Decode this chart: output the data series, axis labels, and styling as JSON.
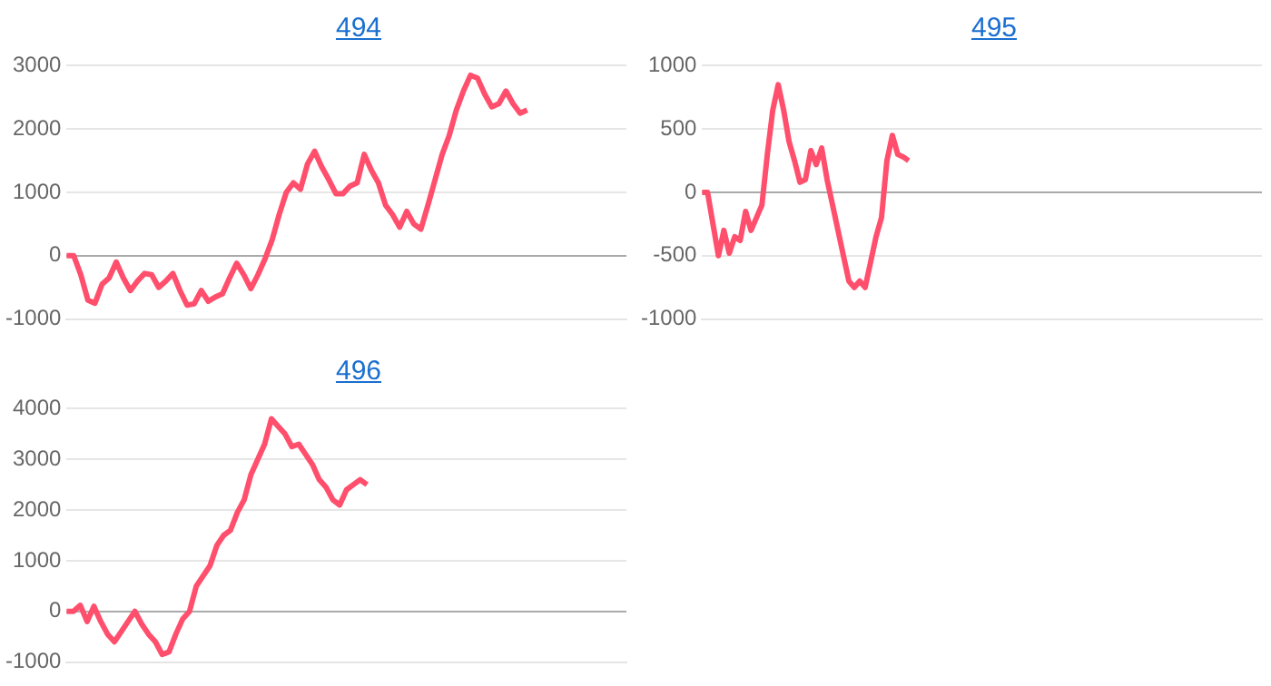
{
  "chart_data": [
    {
      "type": "line",
      "title": "494",
      "color": "#ff4f6d",
      "grid": "y",
      "legend": false,
      "marker": "none",
      "tick_labels": "y",
      "ylim": [
        -1000,
        3000
      ],
      "yticks": [
        -1000,
        0,
        1000,
        2000,
        3000
      ],
      "categories": [
        null,
        null,
        null,
        null,
        null,
        null,
        null,
        null,
        null,
        null,
        null,
        null,
        null,
        null,
        null,
        null,
        null,
        null,
        null,
        null,
        null,
        null,
        null,
        null,
        null,
        null,
        null,
        null,
        null,
        null,
        null,
        null,
        null,
        null,
        null,
        null,
        null,
        null,
        null,
        null,
        null,
        null,
        null,
        null,
        null,
        null,
        null,
        null,
        null,
        null,
        null,
        null,
        null,
        null,
        null,
        null,
        null,
        null,
        null,
        null,
        null,
        null,
        null,
        null,
        null,
        null,
        null,
        null,
        null,
        null,
        null,
        null,
        null,
        null,
        null,
        null,
        null,
        null,
        null,
        null
      ],
      "values": [
        0,
        0,
        -300,
        -700,
        -750,
        -450,
        -350,
        -100,
        -350,
        -550,
        -400,
        -280,
        -300,
        -500,
        -400,
        -280,
        -550,
        -780,
        -760,
        -550,
        -720,
        -650,
        -600,
        -350,
        -120,
        -300,
        -520,
        -300,
        -50,
        250,
        650,
        1000,
        1150,
        1050,
        1450,
        1650,
        1400,
        1200,
        980,
        980,
        1100,
        1150,
        1600,
        1350,
        1150,
        800,
        650,
        450,
        700,
        500,
        420,
        800,
        1200,
        1600,
        1900,
        2300,
        2600,
        2850,
        2800,
        2550,
        2350,
        2400,
        2600,
        2400,
        2250,
        2300,
        null,
        null,
        null,
        null,
        null,
        null,
        null,
        null,
        null,
        null,
        null,
        null,
        null,
        null
      ]
    },
    {
      "type": "line",
      "title": "495",
      "color": "#ff4f6d",
      "grid": "y",
      "legend": false,
      "marker": "none",
      "tick_labels": "y",
      "ylim": [
        -1000,
        1000
      ],
      "yticks": [
        -1000,
        -500,
        0,
        500,
        1000
      ],
      "categories": [
        null,
        null,
        null,
        null,
        null,
        null,
        null,
        null,
        null,
        null,
        null,
        null,
        null,
        null,
        null,
        null,
        null,
        null,
        null,
        null,
        null,
        null,
        null,
        null,
        null,
        null,
        null,
        null,
        null,
        null,
        null,
        null,
        null,
        null,
        null,
        null,
        null,
        null,
        null,
        null,
        null,
        null,
        null,
        null,
        null,
        null,
        null,
        null,
        null,
        null,
        null,
        null,
        null,
        null,
        null,
        null,
        null,
        null,
        null,
        null,
        null,
        null,
        null,
        null,
        null,
        null,
        null,
        null,
        null,
        null,
        null,
        null,
        null,
        null,
        null,
        null,
        null,
        null,
        null,
        null,
        null,
        null,
        null,
        null,
        null,
        null,
        null,
        null,
        null,
        null,
        null,
        null,
        null,
        null,
        null,
        null,
        null,
        null,
        null,
        null,
        null,
        null,
        null,
        null
      ],
      "values": [
        0,
        0,
        -250,
        -500,
        -300,
        -480,
        -350,
        -380,
        -150,
        -300,
        -200,
        -100,
        300,
        650,
        850,
        650,
        400,
        250,
        80,
        100,
        330,
        220,
        350,
        100,
        -100,
        -300,
        -500,
        -700,
        -750,
        -700,
        -750,
        -550,
        -350,
        -200,
        250,
        450,
        300,
        280,
        250,
        null,
        null,
        null,
        null,
        null,
        null,
        null,
        null,
        null,
        null,
        null,
        null,
        null,
        null,
        null,
        null,
        null,
        null,
        null,
        null,
        null,
        null,
        null,
        null,
        null,
        null,
        null,
        null,
        null,
        null,
        null,
        null,
        null,
        null,
        null,
        null,
        null,
        null,
        null,
        null,
        null,
        null,
        null,
        null,
        null,
        null,
        null,
        null,
        null,
        null,
        null,
        null,
        null,
        null,
        null,
        null,
        null,
        null,
        null,
        null,
        null,
        null,
        null,
        null,
        null
      ]
    },
    {
      "type": "line",
      "title": "496",
      "color": "#ff4f6d",
      "grid": "y",
      "legend": false,
      "marker": "none",
      "tick_labels": "y",
      "ylim": [
        -1000,
        4000
      ],
      "yticks": [
        -1000,
        0,
        1000,
        2000,
        3000,
        4000
      ],
      "categories": [
        null,
        null,
        null,
        null,
        null,
        null,
        null,
        null,
        null,
        null,
        null,
        null,
        null,
        null,
        null,
        null,
        null,
        null,
        null,
        null,
        null,
        null,
        null,
        null,
        null,
        null,
        null,
        null,
        null,
        null,
        null,
        null,
        null,
        null,
        null,
        null,
        null,
        null,
        null,
        null,
        null,
        null,
        null,
        null,
        null,
        null,
        null,
        null,
        null,
        null,
        null,
        null,
        null,
        null,
        null,
        null,
        null,
        null,
        null,
        null,
        null,
        null,
        null,
        null,
        null,
        null,
        null,
        null,
        null,
        null,
        null,
        null,
        null,
        null,
        null,
        null,
        null,
        null,
        null,
        null,
        null,
        null,
        null
      ],
      "values": [
        0,
        0,
        120,
        -200,
        100,
        -200,
        -450,
        -600,
        -400,
        -200,
        0,
        -250,
        -450,
        -600,
        -850,
        -800,
        -450,
        -150,
        0,
        500,
        700,
        900,
        1300,
        1500,
        1600,
        1950,
        2200,
        2700,
        3000,
        3300,
        3800,
        3650,
        3500,
        3250,
        3300,
        3100,
        2900,
        2600,
        2450,
        2200,
        2100,
        2400,
        2500,
        2600,
        2500,
        null,
        null,
        null,
        null,
        null,
        null,
        null,
        null,
        null,
        null,
        null,
        null,
        null,
        null,
        null,
        null,
        null,
        null,
        null,
        null,
        null,
        null,
        null,
        null,
        null,
        null,
        null,
        null,
        null,
        null,
        null,
        null,
        null,
        null,
        null,
        null,
        null,
        null
      ]
    }
  ]
}
